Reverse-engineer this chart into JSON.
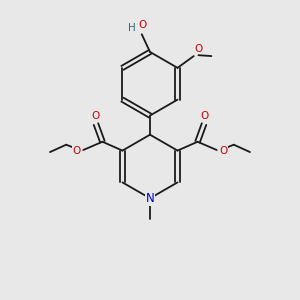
{
  "bg_color": "#e8e8e8",
  "bond_color": "#1a1a1a",
  "o_color": "#cc0000",
  "n_color": "#0000cc",
  "ho_h_color": "#2d7070",
  "line_width": 1.3,
  "fig_width": 3.0,
  "fig_height": 3.0,
  "dpi": 100,
  "xlim": [
    0,
    10
  ],
  "ylim": [
    0,
    10
  ]
}
